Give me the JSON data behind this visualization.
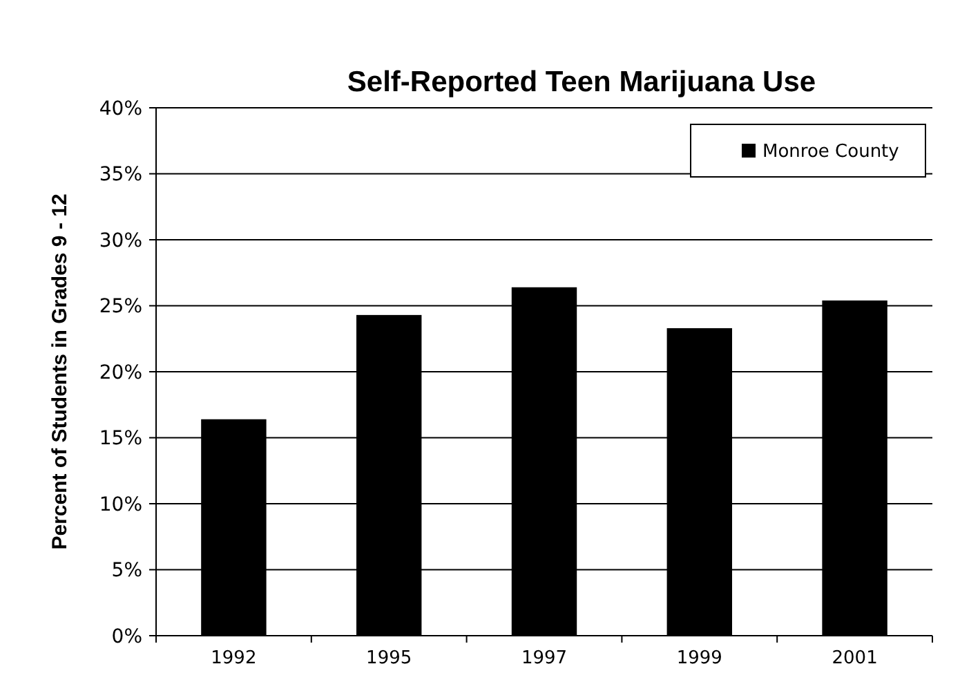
{
  "chart_data": {
    "type": "bar",
    "title": "Self-Reported Teen Marijuana Use",
    "ylabel": "Percent of Students in Grades 9 - 12",
    "categories": [
      "1992",
      "1995",
      "1997",
      "1999",
      "2001"
    ],
    "series": [
      {
        "name": "Monroe County",
        "color": "#000000",
        "values": [
          16.4,
          24.3,
          26.4,
          23.3,
          25.4
        ]
      }
    ],
    "ylim": [
      0,
      40
    ],
    "yticks": [
      {
        "value": 0,
        "label": "0%"
      },
      {
        "value": 5,
        "label": "5%"
      },
      {
        "value": 10,
        "label": "10%"
      },
      {
        "value": 15,
        "label": "15%"
      },
      {
        "value": 20,
        "label": "20%"
      },
      {
        "value": 25,
        "label": "25%"
      },
      {
        "value": 30,
        "label": "30%"
      },
      {
        "value": 35,
        "label": "35%"
      },
      {
        "value": 40,
        "label": "40%"
      }
    ],
    "grid": "y",
    "legend": "top right"
  }
}
